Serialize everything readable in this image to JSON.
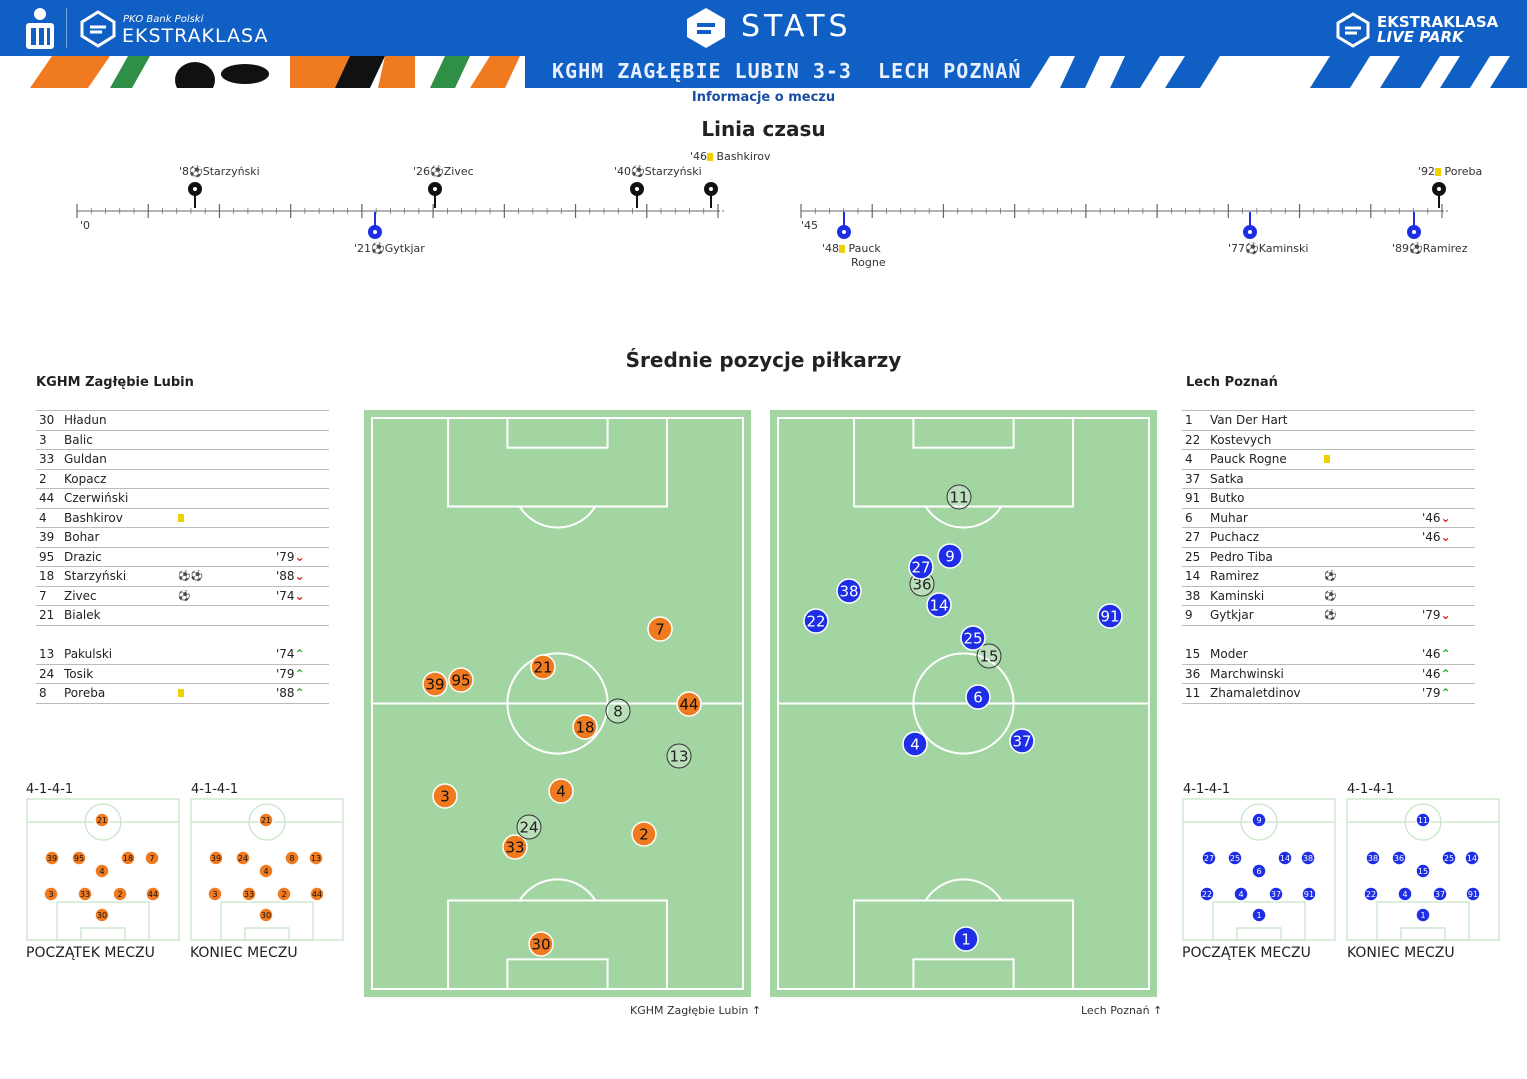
{
  "header": {
    "sponsor": "PKO Bank Polski",
    "league": "EKSTRAKLASA",
    "center_title": "STATS",
    "live_park_line1": "EKSTRAKLASA",
    "live_park_line2": "LIVE PARK",
    "score_banner": "KGHM ZAGŁĘBIE LUBIN 3-3  LECH POZNAŃ",
    "colors": {
      "primary": "#0f5fc4",
      "orange": "#f07a1f",
      "green": "#2f8f46"
    }
  },
  "info_link": "Informacje o meczu",
  "timeline": {
    "title": "Linia czasu",
    "half1_start": "'0",
    "half2_start": "'45",
    "top_events": [
      {
        "minute": "'8",
        "icon": "ball-icon",
        "text": "Starzyński"
      },
      {
        "minute": "'26",
        "icon": "ball-icon",
        "text": "Zivec"
      },
      {
        "minute": "'40",
        "icon": "ball-icon",
        "text": "Starzyński"
      },
      {
        "minute": "'46",
        "icon": "yellow-card-icon",
        "text": "Bashkirov"
      },
      {
        "minute": "'92",
        "icon": "yellow-card-icon",
        "text": "Poreba"
      }
    ],
    "bottom_events": [
      {
        "minute": "'21",
        "icon": "ball-icon",
        "text": "Gytkjar"
      },
      {
        "minute": "'48",
        "icon": "yellow-card-icon",
        "text": "Pauck",
        "text2": "Rogne"
      },
      {
        "minute": "'77",
        "icon": "ball-icon",
        "text": "Kaminski"
      },
      {
        "minute": "'89",
        "icon": "ball-icon",
        "text": "Ramirez"
      }
    ]
  },
  "positions_title": "Średnie pozycje piłkarzy",
  "home": {
    "name": "KGHM Zagłębie Lubin",
    "color": "#f07a1f",
    "starters": [
      {
        "num": "30",
        "name": "Hładun",
        "events": "",
        "minute": ""
      },
      {
        "num": "3",
        "name": "Balic",
        "events": "",
        "minute": ""
      },
      {
        "num": "33",
        "name": "Guldan",
        "events": "",
        "minute": ""
      },
      {
        "num": "2",
        "name": "Kopacz",
        "events": "",
        "minute": ""
      },
      {
        "num": "44",
        "name": "Czerwiński",
        "events": "",
        "minute": ""
      },
      {
        "num": "4",
        "name": "Bashkirov",
        "events": "yellow",
        "minute": ""
      },
      {
        "num": "39",
        "name": "Bohar",
        "events": "",
        "minute": ""
      },
      {
        "num": "95",
        "name": "Drazic",
        "events": "",
        "minute": "'79",
        "sub": "out"
      },
      {
        "num": "18",
        "name": "Starzyński",
        "events": "⚽⚽",
        "minute": "'88",
        "sub": "out"
      },
      {
        "num": "7",
        "name": "Zivec",
        "events": "⚽",
        "minute": "'74",
        "sub": "out"
      },
      {
        "num": "21",
        "name": "Bialek",
        "events": "",
        "minute": ""
      }
    ],
    "subs": [
      {
        "num": "13",
        "name": "Pakulski",
        "events": "",
        "minute": "'74",
        "sub": "in"
      },
      {
        "num": "24",
        "name": "Tosik",
        "events": "",
        "minute": "'79",
        "sub": "in"
      },
      {
        "num": "8",
        "name": "Poreba",
        "events": "yellow",
        "minute": "'88",
        "sub": "in"
      }
    ],
    "formation_start": "4-1-4-1",
    "formation_end": "4-1-4-1",
    "label_start": "POCZĄTEK MECZU",
    "label_end": "KONIEC MECZU",
    "pitch_caption": "KGHM Zagłębie Lubin"
  },
  "away": {
    "name": "Lech Poznań",
    "color": "#1d2ee6",
    "starters": [
      {
        "num": "1",
        "name": "Van Der Hart",
        "events": "",
        "minute": ""
      },
      {
        "num": "22",
        "name": "Kostevych",
        "events": "",
        "minute": ""
      },
      {
        "num": "4",
        "name": "Pauck Rogne",
        "events": "yellow",
        "minute": ""
      },
      {
        "num": "37",
        "name": "Satka",
        "events": "",
        "minute": ""
      },
      {
        "num": "91",
        "name": "Butko",
        "events": "",
        "minute": ""
      },
      {
        "num": "6",
        "name": "Muhar",
        "events": "",
        "minute": "'46",
        "sub": "out"
      },
      {
        "num": "27",
        "name": "Puchacz",
        "events": "",
        "minute": "'46",
        "sub": "out"
      },
      {
        "num": "25",
        "name": "Pedro Tiba",
        "events": "",
        "minute": ""
      },
      {
        "num": "14",
        "name": "Ramirez",
        "events": "⚽",
        "minute": ""
      },
      {
        "num": "38",
        "name": "Kaminski",
        "events": "⚽",
        "minute": ""
      },
      {
        "num": "9",
        "name": "Gytkjar",
        "events": "⚽",
        "minute": "'79",
        "sub": "out"
      }
    ],
    "subs": [
      {
        "num": "15",
        "name": "Moder",
        "events": "",
        "minute": "'46",
        "sub": "in"
      },
      {
        "num": "36",
        "name": "Marchwinski",
        "events": "",
        "minute": "'46",
        "sub": "in"
      },
      {
        "num": "11",
        "name": "Zhamaletdinov",
        "events": "",
        "minute": "'79",
        "sub": "in"
      }
    ],
    "formation_start": "4-1-4-1",
    "formation_end": "4-1-4-1",
    "label_start": "POCZĄTEK MECZU",
    "label_end": "KONIEC MECZU",
    "pitch_caption": "Lech Poznań"
  }
}
